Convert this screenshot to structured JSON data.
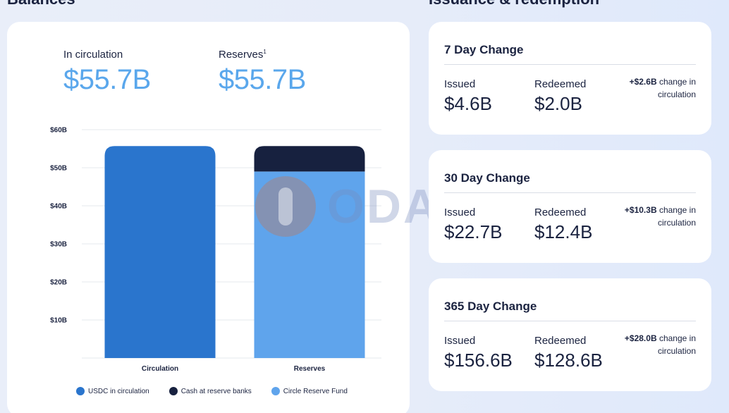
{
  "headings": {
    "balances": "Balances",
    "issuance": "Issuance & redemption"
  },
  "balances": {
    "circulation_label": "In circulation",
    "circulation_value": "$55.7B",
    "reserves_label": "Reserves",
    "reserves_sup": "1",
    "reserves_value": "$55.7B"
  },
  "watermark": {
    "text": "ODAILY"
  },
  "chart_data": {
    "type": "bar",
    "stacked": true,
    "categories": [
      "Circulation",
      "Reserves"
    ],
    "ylim": [
      0,
      60
    ],
    "yticks": [
      10,
      20,
      30,
      40,
      50,
      60
    ],
    "ytick_labels": [
      "$10B",
      "$20B",
      "$30B",
      "$40B",
      "$50B",
      "$60B"
    ],
    "grid": true,
    "legend_position": "bottom",
    "series": [
      {
        "name": "USDC in circulation",
        "color": "#2a75cd",
        "values": [
          55.7,
          0
        ]
      },
      {
        "name": "Cash at reserve banks",
        "color": "#17213f",
        "values": [
          0,
          6.7
        ]
      },
      {
        "name": "Circle Reserve Fund",
        "color": "#5fa4ec",
        "values": [
          0,
          49.0
        ]
      }
    ],
    "stack_order": [
      [
        0
      ],
      [
        2,
        1
      ]
    ]
  },
  "changes": [
    {
      "title": "7 Day Change",
      "issued_label": "Issued",
      "issued": "$4.6B",
      "redeemed_label": "Redeemed",
      "redeemed": "$2.0B",
      "net": "+$2.6B",
      "net_suffix": "change in circulation"
    },
    {
      "title": "30 Day Change",
      "issued_label": "Issued",
      "issued": "$22.7B",
      "redeemed_label": "Redeemed",
      "redeemed": "$12.4B",
      "net": "+$10.3B",
      "net_suffix": "change in circulation"
    },
    {
      "title": "365 Day Change",
      "issued_label": "Issued",
      "issued": "$156.6B",
      "redeemed_label": "Redeemed",
      "redeemed": "$128.6B",
      "net": "+$28.0B",
      "net_suffix": "change in circulation"
    }
  ]
}
